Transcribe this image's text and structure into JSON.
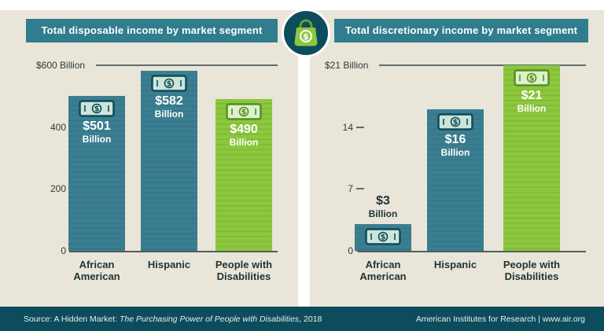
{
  "charts": [
    {
      "title": "Total disposable income by market segment",
      "axis": {
        "top_label": "$600 Billion",
        "ticks": [
          "400",
          "200",
          "0"
        ],
        "max": 600
      },
      "bars": [
        {
          "category": "African American",
          "category_lines": "African\nAmerican",
          "value": 501,
          "value_line1": "$501",
          "value_line2": "Billion",
          "series": "teal",
          "label_style": "inside"
        },
        {
          "category": "Hispanic",
          "category_lines": "Hispanic",
          "value": 582,
          "value_line1": "$582",
          "value_line2": "Billion",
          "series": "teal",
          "label_style": "inside"
        },
        {
          "category": "People with Disabilities",
          "category_lines": "People with\nDisabilities",
          "value": 490,
          "value_line1": "$490",
          "value_line2": "Billion",
          "series": "green",
          "label_style": "inside"
        }
      ]
    },
    {
      "title": "Total discretionary income by market segment",
      "axis": {
        "top_label": "$21 Billion",
        "ticks": [
          "14",
          "7",
          "0"
        ],
        "max": 21
      },
      "bars": [
        {
          "category": "African American",
          "category_lines": "African\nAmerican",
          "value": 3,
          "value_line1": "$3",
          "value_line2": "Billion",
          "series": "teal",
          "label_style": "outside"
        },
        {
          "category": "Hispanic",
          "category_lines": "Hispanic",
          "value": 16,
          "value_line1": "$16",
          "value_line2": "Billion",
          "series": "teal",
          "label_style": "inside"
        },
        {
          "category": "People with Disabilities",
          "category_lines": "People with\nDisabilities",
          "value": 21,
          "value_line1": "$21",
          "value_line2": "Billion",
          "series": "green",
          "label_style": "inside"
        }
      ]
    }
  ],
  "chart_data": [
    {
      "type": "bar",
      "title": "Total disposable income by market segment",
      "categories": [
        "African American",
        "Hispanic",
        "People with Disabilities"
      ],
      "values": [
        501,
        582,
        490
      ],
      "unit": "$ Billion",
      "ylim": [
        0,
        600
      ],
      "yticks": [
        0,
        200,
        400,
        600
      ],
      "bar_colors": [
        "teal",
        "teal",
        "green"
      ],
      "grid": "top line and baseline only",
      "legend": "none"
    },
    {
      "type": "bar",
      "title": "Total discretionary income by market segment",
      "categories": [
        "African American",
        "Hispanic",
        "People with Disabilities"
      ],
      "values": [
        3,
        16,
        21
      ],
      "unit": "$ Billion",
      "ylim": [
        0,
        21
      ],
      "yticks": [
        0,
        7,
        14,
        21
      ],
      "bar_colors": [
        "teal",
        "teal",
        "green"
      ],
      "grid": "top line and baseline only",
      "legend": "none"
    }
  ],
  "footer": {
    "source_prefix": "Source: A Hidden Market: ",
    "source_italic": "The Purchasing Power of People with Disabilities",
    "source_suffix": ", 2018",
    "credit": "American Institutes for Research | www.air.org"
  },
  "icons": {
    "center_icon": "shopping-bag-dollar-icon",
    "bar_icon": "dollar-bill-icon"
  },
  "colors": {
    "background": "#e9e5d8",
    "top_strip": "#ffffff",
    "header_bar": "#2f7d8d",
    "footer_bar": "#0d4c5c",
    "circle_bg": "#0d4c5c",
    "bag_green": "#8dc63f",
    "bag_handle": "#66a028",
    "axis_line": "#5f6e6c",
    "text_dark": "#1f3337",
    "series": {
      "teal": {
        "bar": "#3b7e90",
        "stripe": "#34758a",
        "icon_fill": "#cde4da",
        "icon_stroke": "#0e4b5a"
      },
      "green": {
        "bar": "#8dc63f",
        "stripe": "#80b932",
        "icon_fill": "#dff0cc",
        "icon_stroke": "#55901f"
      }
    }
  }
}
